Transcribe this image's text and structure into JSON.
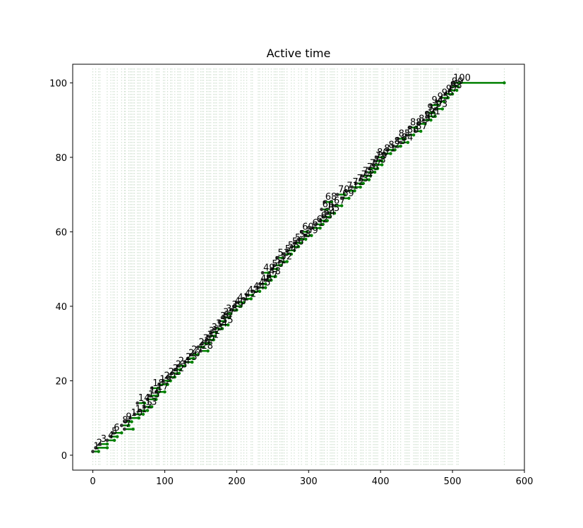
{
  "chart_data": {
    "type": "line",
    "title": "Active time",
    "xlabel": "",
    "ylabel": "",
    "xlim": [
      -28,
      600
    ],
    "ylim": [
      -4,
      105
    ],
    "x_ticks": [
      0,
      100,
      200,
      300,
      400,
      500,
      600
    ],
    "y_ticks": [
      0,
      20,
      40,
      60,
      80,
      100
    ],
    "grid": "vertical dotted lines at event times",
    "colors": {
      "active": "#008000",
      "start": "#333333",
      "guide": "#000000",
      "grid": "#c9dcc9"
    },
    "labels": [
      "1",
      "2",
      "3",
      "4",
      "5",
      "6",
      "7",
      "8",
      "9",
      "10",
      "11",
      "12",
      "13",
      "14",
      "15",
      "16",
      "17",
      "18",
      "19",
      "20",
      "21",
      "22",
      "23",
      "24",
      "25",
      "26",
      "27",
      "28",
      "29",
      "30",
      "31",
      "32",
      "33",
      "34",
      "35",
      "36",
      "37",
      "38",
      "39",
      "40",
      "41",
      "42",
      "43",
      "44",
      "45",
      "46",
      "47",
      "48",
      "49",
      "50",
      "51",
      "52",
      "53",
      "54",
      "55",
      "56",
      "57",
      "58",
      "59",
      "60",
      "61",
      "62",
      "63",
      "64",
      "65",
      "66",
      "67",
      "68",
      "69",
      "70",
      "71",
      "72",
      "73",
      "74",
      "75",
      "76",
      "77",
      "78",
      "79",
      "80",
      "81",
      "82",
      "83",
      "84",
      "85",
      "86",
      "87",
      "88",
      "89",
      "90",
      "91",
      "92",
      "93",
      "94",
      "95",
      "96",
      "97",
      "98",
      "99",
      "100"
    ],
    "start_x": [
      0,
      4,
      10,
      20,
      25,
      28,
      44,
      40,
      45,
      52,
      58,
      66,
      72,
      62,
      76,
      78,
      88,
      82,
      92,
      98,
      104,
      110,
      114,
      118,
      128,
      132,
      136,
      150,
      146,
      152,
      158,
      160,
      164,
      170,
      178,
      176,
      180,
      184,
      192,
      196,
      200,
      210,
      214,
      222,
      230,
      232,
      240,
      244,
      236,
      248,
      252,
      260,
      256,
      266,
      270,
      276,
      280,
      286,
      296,
      290,
      304,
      310,
      316,
      320,
      326,
      318,
      334,
      322,
      346,
      340,
      352,
      360,
      366,
      372,
      374,
      380,
      384,
      390,
      392,
      394,
      404,
      410,
      418,
      428,
      424,
      436,
      448,
      440,
      452,
      460,
      466,
      464,
      476,
      470,
      478,
      484,
      490,
      496,
      498,
      500
    ],
    "end_x": [
      8,
      20,
      20,
      30,
      34,
      40,
      56,
      50,
      54,
      64,
      70,
      76,
      82,
      72,
      88,
      90,
      100,
      92,
      104,
      108,
      114,
      120,
      122,
      128,
      138,
      140,
      146,
      160,
      154,
      162,
      168,
      170,
      172,
      180,
      188,
      184,
      190,
      192,
      200,
      206,
      210,
      220,
      222,
      232,
      240,
      240,
      248,
      254,
      244,
      256,
      262,
      270,
      264,
      276,
      280,
      286,
      290,
      296,
      304,
      298,
      316,
      320,
      326,
      330,
      336,
      326,
      346,
      332,
      356,
      350,
      364,
      372,
      376,
      384,
      386,
      392,
      396,
      402,
      402,
      404,
      414,
      420,
      428,
      438,
      434,
      446,
      456,
      450,
      462,
      470,
      476,
      474,
      486,
      480,
      488,
      494,
      500,
      506,
      508,
      572
    ],
    "y": [
      1,
      2,
      3,
      4,
      5,
      6,
      7,
      8,
      9,
      10,
      11,
      12,
      13,
      14,
      15,
      16,
      17,
      18,
      19,
      20,
      21,
      22,
      23,
      24,
      25,
      26,
      27,
      28,
      29,
      30,
      31,
      32,
      33,
      34,
      35,
      36,
      37,
      38,
      39,
      40,
      41,
      42,
      43,
      44,
      45,
      46,
      47,
      48,
      49,
      50,
      51,
      52,
      53,
      54,
      55,
      56,
      57,
      58,
      59,
      60,
      61,
      62,
      63,
      64,
      65,
      66,
      67,
      68,
      69,
      70,
      71,
      72,
      73,
      74,
      75,
      76,
      77,
      78,
      79,
      80,
      81,
      82,
      83,
      84,
      85,
      86,
      87,
      88,
      89,
      90,
      91,
      92,
      93,
      94,
      95,
      96,
      97,
      98,
      99,
      100
    ]
  }
}
